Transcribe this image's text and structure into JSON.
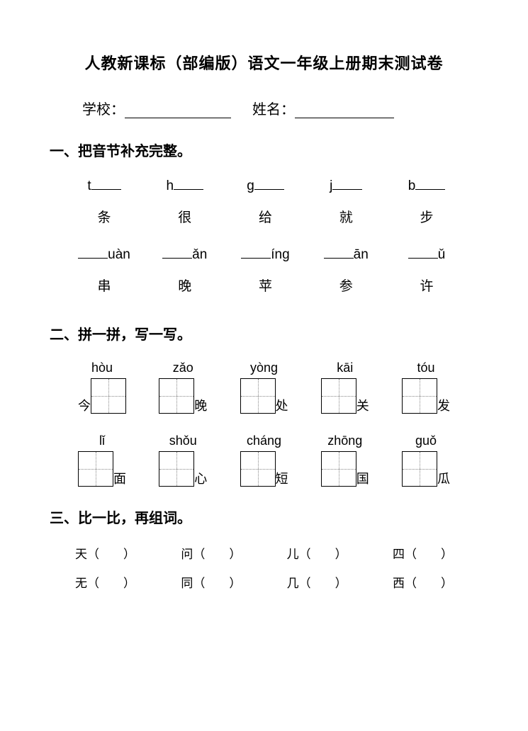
{
  "title": "人教新课标（部编版）语文一年级上册期末测试卷",
  "info": {
    "school_label": "学校：",
    "name_label": "姓名：",
    "underline_width_school": 150,
    "underline_width_name": 140
  },
  "section1": {
    "heading": "一、把音节补充完整。",
    "row1_initials": [
      "t",
      "h",
      "g",
      "j",
      "b"
    ],
    "row1_chars": [
      "条",
      "很",
      "给",
      "就",
      "步"
    ],
    "row2_finals": [
      "uàn",
      "ǎn",
      "íng",
      "ān",
      "ǔ"
    ],
    "row2_chars": [
      "串",
      "晚",
      "苹",
      "参",
      "许"
    ]
  },
  "section2": {
    "heading": "二、拼一拼，写一写。",
    "row1": [
      {
        "pinyin": "hòu",
        "pre": "今",
        "post": ""
      },
      {
        "pinyin": "zǎo",
        "pre": "",
        "post": "晚"
      },
      {
        "pinyin": "yòng",
        "pre": "",
        "post": "处"
      },
      {
        "pinyin": "kāi",
        "pre": "",
        "post": "关"
      },
      {
        "pinyin": "tóu",
        "pre": "",
        "post": "发"
      }
    ],
    "row2": [
      {
        "pinyin": "lǐ",
        "pre": "",
        "post": "面"
      },
      {
        "pinyin": "shǒu",
        "pre": "",
        "post": "心"
      },
      {
        "pinyin": "cháng",
        "pre": "",
        "post": "短"
      },
      {
        "pinyin": "zhōng",
        "pre": "",
        "post": "国"
      },
      {
        "pinyin": "guǒ",
        "pre": "瓜",
        "post": "",
        "pre_side": "right"
      }
    ]
  },
  "section3": {
    "heading": "三、比一比，再组词。",
    "row1": [
      "天（　　）",
      "问（　　）",
      "儿（　　）",
      "四（　　）"
    ],
    "row2": [
      "无（　　）",
      "同（　　）",
      "几（　　）",
      "西（　　）"
    ]
  },
  "colors": {
    "text": "#000000",
    "background": "#ffffff",
    "box_border": "#000000",
    "dotted": "#888888"
  }
}
